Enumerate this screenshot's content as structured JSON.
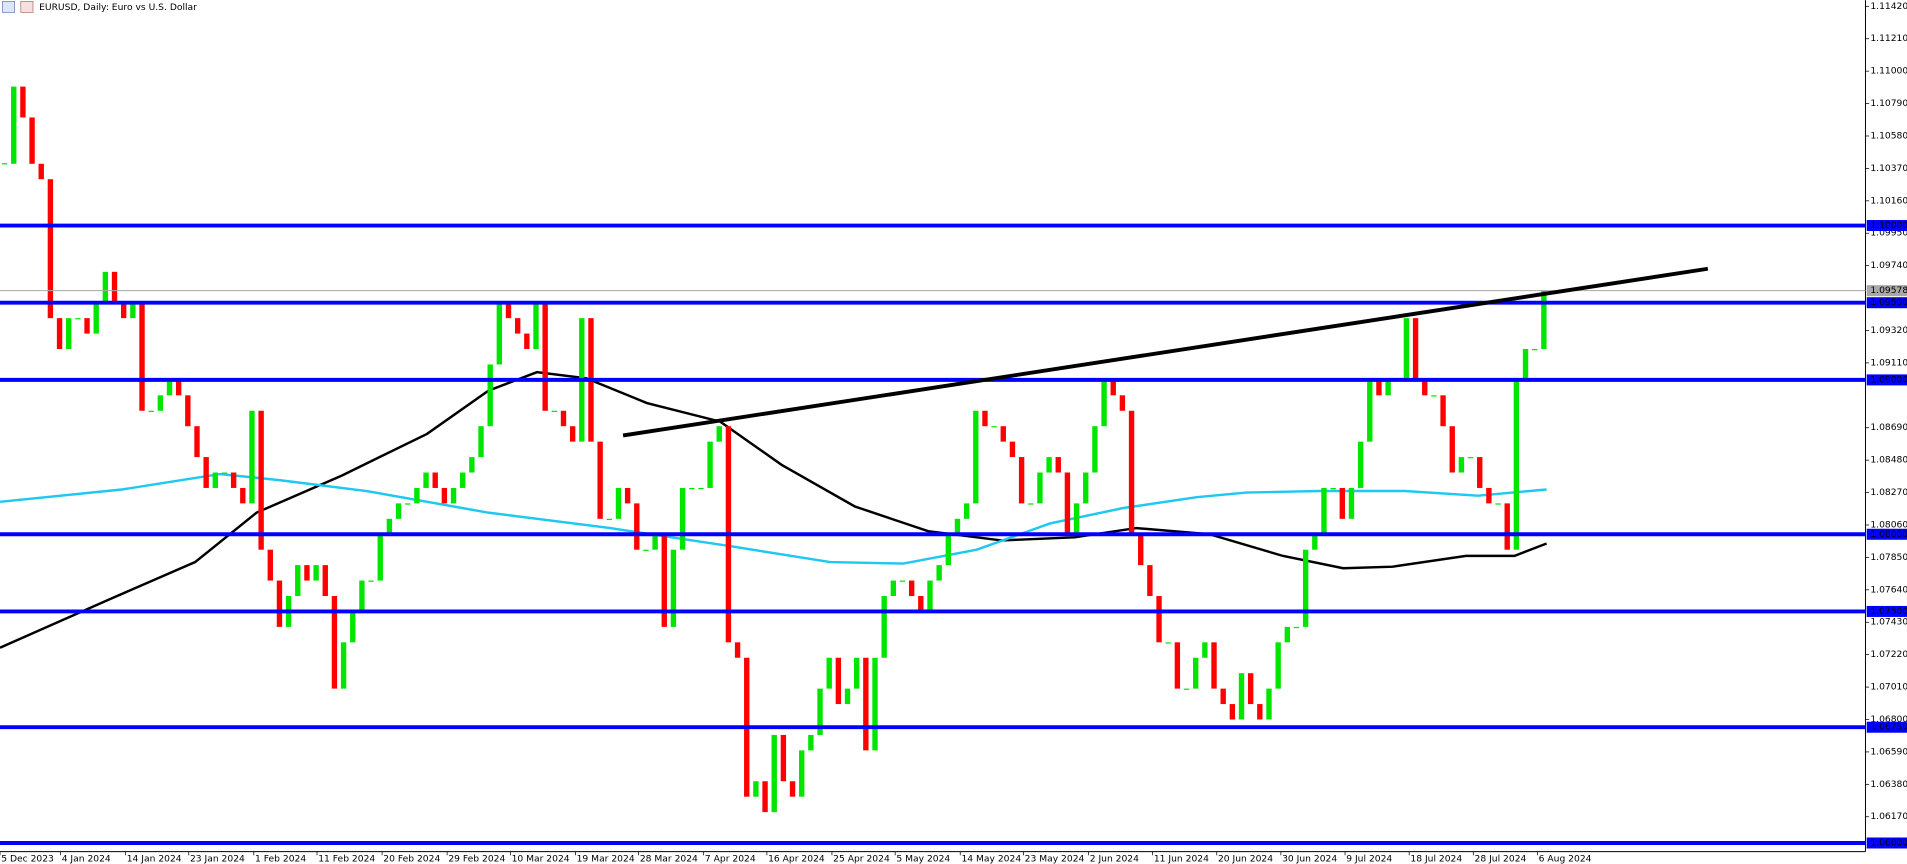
{
  "chart_data": {
    "type": "candlestick",
    "title": "EURUSD, Daily:  Euro vs U.S. Dollar",
    "up_color": "#00e600",
    "down_color": "#ff0000",
    "close": [
      1.104,
      1.109,
      1.107,
      1.104,
      1.103,
      1.094,
      1.092,
      1.094,
      1.094,
      1.093,
      1.095,
      1.097,
      1.095,
      1.094,
      1.095,
      1.088,
      1.088,
      1.089,
      1.09,
      1.089,
      1.087,
      1.085,
      1.083,
      1.084,
      1.084,
      1.083,
      1.082,
      1.088,
      1.079,
      1.077,
      1.074,
      1.076,
      1.078,
      1.077,
      1.078,
      1.076,
      1.07,
      1.073,
      1.075,
      1.077,
      1.077,
      1.08,
      1.081,
      1.082,
      1.082,
      1.083,
      1.084,
      1.083,
      1.082,
      1.083,
      1.084,
      1.085,
      1.087,
      1.091,
      1.095,
      1.094,
      1.093,
      1.092,
      1.095,
      1.088,
      1.088,
      1.087,
      1.086,
      1.094,
      1.086,
      1.081,
      1.081,
      1.083,
      1.082,
      1.079,
      1.079,
      1.08,
      1.074,
      1.079,
      1.083,
      1.083,
      1.083,
      1.086,
      1.087,
      1.073,
      1.072,
      1.063,
      1.064,
      1.062,
      1.067,
      1.064,
      1.063,
      1.066,
      1.067,
      1.07,
      1.072,
      1.069,
      1.07,
      1.072,
      1.066,
      1.072,
      1.076,
      1.077,
      1.077,
      1.076,
      1.075,
      1.077,
      1.078,
      1.08,
      1.081,
      1.082,
      1.088,
      1.087,
      1.087,
      1.086,
      1.085,
      1.082,
      1.082,
      1.084,
      1.085,
      1.084,
      1.08,
      1.082,
      1.084,
      1.087,
      1.09,
      1.089,
      1.088,
      1.08,
      1.078,
      1.076,
      1.073,
      1.073,
      1.07,
      1.07,
      1.072,
      1.073,
      1.07,
      1.069,
      1.068,
      1.071,
      1.069,
      1.068,
      1.07,
      1.073,
      1.074,
      1.074,
      1.079,
      1.08,
      1.083,
      1.083,
      1.081,
      1.083,
      1.086,
      1.09,
      1.089,
      1.09,
      1.09,
      1.094,
      1.09,
      1.089,
      1.089,
      1.087,
      1.084,
      1.085,
      1.085,
      1.083,
      1.082,
      1.082,
      1.079,
      1.09,
      1.092,
      1.092,
      1.0958
    ],
    "xlim": [
      -0.5,
      203.1
    ],
    "ylim": [
      1.05944,
      1.1146
    ],
    "xticks": [
      {
        "value": -0.5,
        "label": "5 Dec 2023"
      },
      {
        "value": 6.1,
        "label": "4 Jan 2024"
      },
      {
        "value": 13.2,
        "label": "14 Jan 2024"
      },
      {
        "value": 20.1,
        "label": "23 Jan 2024"
      },
      {
        "value": 27.2,
        "label": "1 Feb 2024"
      },
      {
        "value": 34.1,
        "label": "11 Feb 2024"
      },
      {
        "value": 41.2,
        "label": "20 Feb 2024"
      },
      {
        "value": 48.3,
        "label": "29 Feb 2024"
      },
      {
        "value": 55.2,
        "label": "10 Mar 2024"
      },
      {
        "value": 62.3,
        "label": "19 Mar 2024"
      },
      {
        "value": 69.2,
        "label": "28 Mar 2024"
      },
      {
        "value": 76.3,
        "label": "7 Apr 2024"
      },
      {
        "value": 83.2,
        "label": "16 Apr 2024"
      },
      {
        "value": 90.3,
        "label": "25 Apr 2024"
      },
      {
        "value": 97.2,
        "label": "5 May 2024"
      },
      {
        "value": 104.3,
        "label": "14 May 2024"
      },
      {
        "value": 111.2,
        "label": "23 May 2024"
      },
      {
        "value": 118.3,
        "label": "2 Jun 2024"
      },
      {
        "value": 125.3,
        "label": "11 Jun 2024"
      },
      {
        "value": 132.3,
        "label": "20 Jun 2024"
      },
      {
        "value": 139.3,
        "label": "30 Jun 2024"
      },
      {
        "value": 146.3,
        "label": "9 Jul 2024"
      },
      {
        "value": 153.3,
        "label": "18 Jul 2024"
      },
      {
        "value": 160.3,
        "label": "28 Jul 2024"
      },
      {
        "value": 167.3,
        "label": "6 Aug 2024"
      }
    ],
    "yticks": [
      {
        "value": 1.1142,
        "label": "1.11420"
      },
      {
        "value": 1.1121,
        "label": "1.11210"
      },
      {
        "value": 1.11,
        "label": "1.11000"
      },
      {
        "value": 1.1079,
        "label": "1.10790"
      },
      {
        "value": 1.1058,
        "label": "1.10580"
      },
      {
        "value": 1.1037,
        "label": "1.10370"
      },
      {
        "value": 1.1016,
        "label": "1.10160"
      },
      {
        "value": 1.0995,
        "label": "1.09950"
      },
      {
        "value": 1.0974,
        "label": "1.09740"
      },
      {
        "value": 1.0932,
        "label": "1.09320"
      },
      {
        "value": 1.0911,
        "label": "1.09110"
      },
      {
        "value": 1.0869,
        "label": "1.08690"
      },
      {
        "value": 1.0848,
        "label": "1.08480"
      },
      {
        "value": 1.0827,
        "label": "1.08270"
      },
      {
        "value": 1.0806,
        "label": "1.08060"
      },
      {
        "value": 1.0785,
        "label": "1.07850"
      },
      {
        "value": 1.0764,
        "label": "1.07640"
      },
      {
        "value": 1.0743,
        "label": "1.07430"
      },
      {
        "value": 1.0722,
        "label": "1.07220"
      },
      {
        "value": 1.0701,
        "label": "1.07010"
      },
      {
        "value": 1.068,
        "label": "1.06800"
      },
      {
        "value": 1.0659,
        "label": "1.06590"
      },
      {
        "value": 1.0638,
        "label": "1.06380"
      },
      {
        "value": 1.0617,
        "label": "1.06170"
      }
    ],
    "levels": [
      {
        "value": 1.1,
        "label": "1.10000"
      },
      {
        "value": 1.095,
        "label": "1.09500"
      },
      {
        "value": 1.09,
        "label": "1.09000"
      },
      {
        "value": 1.08,
        "label": "1.08000"
      },
      {
        "value": 1.075,
        "label": "1.07500"
      },
      {
        "value": 1.0675,
        "label": "1.06750"
      },
      {
        "value": 1.06,
        "label": "1.06000"
      }
    ],
    "level_color": "#0000ff",
    "current_price": {
      "value": 1.09578,
      "label": "1.09578"
    },
    "moving_averages": [
      {
        "color": "#000000",
        "x": [
          -0.5,
          11.5,
          20.8,
          27.5,
          36.8,
          46.1,
          52.8,
          58.1,
          63.5,
          70.1,
          78.1,
          84.8,
          92.8,
          100.8,
          108.8,
          116.8,
          123.5,
          131.5,
          139.5,
          146.1,
          151.5,
          159.5,
          164.8,
          168.3
        ],
        "values": [
          1.07265,
          1.0758,
          1.0782,
          1.0814,
          1.0838,
          1.0865,
          1.0893,
          1.0905,
          1.0901,
          1.0885,
          1.0873,
          1.0845,
          1.0818,
          1.0802,
          1.0796,
          1.0798,
          1.0804,
          1.08,
          1.0786,
          1.0778,
          1.0779,
          1.0786,
          1.0786,
          1.0794
        ]
      },
      {
        "color": "#1ec8f0",
        "x": [
          -0.5,
          12.8,
          23.5,
          30.1,
          39.5,
          52.8,
          66.1,
          79.5,
          90.1,
          98.1,
          106.1,
          114.1,
          122.1,
          130.1,
          135.5,
          143.5,
          152.8,
          160.8,
          168.3
        ],
        "values": [
          1.0821,
          1.0829,
          1.0839,
          1.0835,
          1.0828,
          1.0814,
          1.0804,
          1.0792,
          1.0782,
          1.0781,
          1.079,
          1.0807,
          1.0817,
          1.0824,
          1.0827,
          1.0828,
          1.0828,
          1.0825,
          1.0829
        ]
      }
    ],
    "trendline": {
      "color": "#000000",
      "x": [
        67.5,
        185.9
      ],
      "values": [
        1.0864,
        1.0972
      ]
    }
  }
}
